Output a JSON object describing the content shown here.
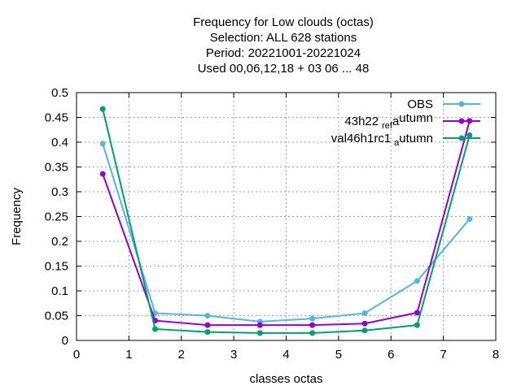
{
  "chart_data": {
    "type": "line",
    "title_lines": [
      "Frequency  for Low clouds (octas)",
      "Selection: ALL    628 stations",
      "Period: 20221001-20221024",
      "Used  00,06,12,18  + 03 06 ... 48"
    ],
    "xlabel": "classes octas",
    "ylabel": "Frequency",
    "xlim": [
      0,
      8
    ],
    "ylim": [
      0,
      0.5
    ],
    "xticks": [
      "0",
      "1",
      "2",
      "3",
      "4",
      "5",
      "6",
      "7",
      "8"
    ],
    "yticks": [
      "0",
      "0.05",
      "0.1",
      "0.15",
      "0.2",
      "0.25",
      "0.3",
      "0.35",
      "0.4",
      "0.45",
      "0.5"
    ],
    "grid": true,
    "legend_position": "top-right",
    "x": [
      0.5,
      1.5,
      2.5,
      3.5,
      4.5,
      5.5,
      6.5,
      7.5
    ],
    "series": [
      {
        "name": "OBS",
        "color": "#56b4e9",
        "values": [
          0.397,
          0.055,
          0.05,
          0.038,
          0.044,
          0.055,
          0.12,
          0.245
        ]
      },
      {
        "name": "43h22",
        "name_sub": "ref",
        "name_mid": "a",
        "name_tail": "utumn",
        "color": "#9400d3",
        "values": [
          0.336,
          0.04,
          0.031,
          0.031,
          0.031,
          0.034,
          0.056,
          0.443
        ]
      },
      {
        "name": "val46h1rc1",
        "name_sub": "a",
        "name_tail": "utumn",
        "color": "#009e73",
        "values": [
          0.467,
          0.023,
          0.017,
          0.015,
          0.015,
          0.02,
          0.031,
          0.414
        ]
      }
    ]
  }
}
